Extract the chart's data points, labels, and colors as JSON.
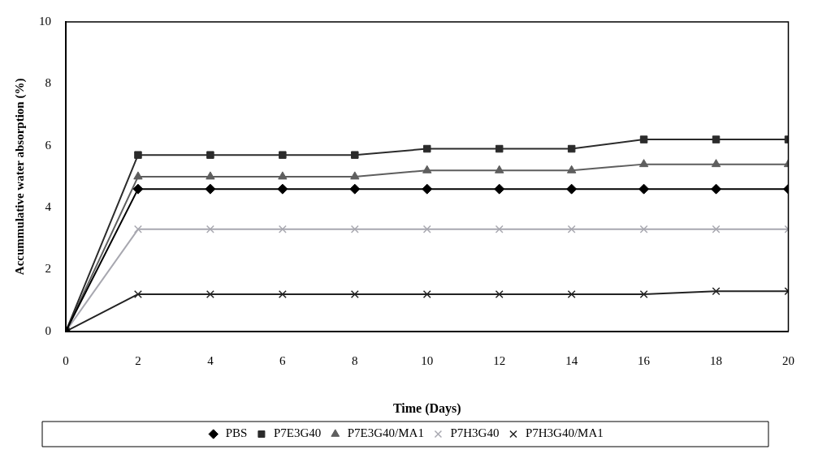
{
  "chart_data": {
    "type": "line",
    "xlabel": "Time (Days)",
    "ylabel": "Accummulative water absorption (%)",
    "x": [
      0,
      2,
      4,
      6,
      8,
      10,
      12,
      14,
      16,
      18,
      20
    ],
    "xlim": [
      0,
      20
    ],
    "xticks": [
      0,
      2,
      4,
      6,
      8,
      10,
      12,
      14,
      16,
      18,
      20
    ],
    "ylim": [
      0,
      10
    ],
    "yticks": [
      0,
      2,
      4,
      6,
      8,
      10
    ],
    "grid": false,
    "legend": "bottom",
    "line_style": "solid",
    "series": [
      {
        "name": "PBS",
        "color": "#000000",
        "marker": "diamond",
        "values": [
          0,
          4.6,
          4.6,
          4.6,
          4.6,
          4.6,
          4.6,
          4.6,
          4.6,
          4.6,
          4.6
        ]
      },
      {
        "name": "P7E3G40",
        "color": "#2b2b2b",
        "marker": "square",
        "values": [
          0,
          5.7,
          5.7,
          5.7,
          5.7,
          5.9,
          5.9,
          5.9,
          6.2,
          6.2,
          6.2
        ]
      },
      {
        "name": "P7E3G40/MA1",
        "color": "#5e5e5e",
        "marker": "triangle",
        "values": [
          0,
          5.0,
          5.0,
          5.0,
          5.0,
          5.2,
          5.2,
          5.2,
          5.4,
          5.4,
          5.4
        ]
      },
      {
        "name": "P7H3G40",
        "color": "#a8a8b0",
        "marker": "cross",
        "values": [
          0,
          3.3,
          3.3,
          3.3,
          3.3,
          3.3,
          3.3,
          3.3,
          3.3,
          3.3,
          3.3
        ]
      },
      {
        "name": "P7H3G40/MA1",
        "color": "#222222",
        "marker": "cross",
        "values": [
          0,
          1.2,
          1.2,
          1.2,
          1.2,
          1.2,
          1.2,
          1.2,
          1.2,
          1.3,
          1.3
        ]
      }
    ]
  }
}
